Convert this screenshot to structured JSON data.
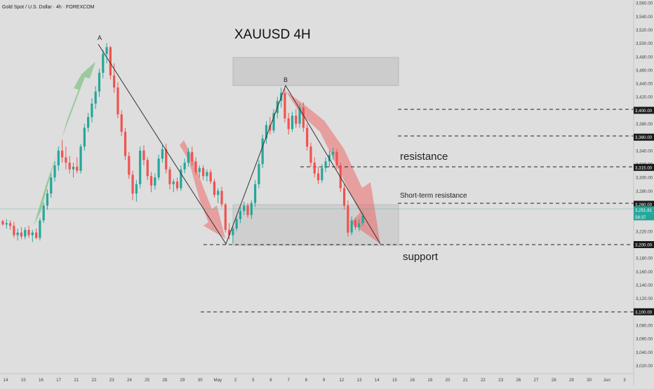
{
  "header": {
    "symbol_info": "Gold Spot / U.S. Dollar · 4h · FOREXCOM"
  },
  "chart_data": {
    "type": "candlestick",
    "title": "XAUUSD  4H",
    "y_axis": {
      "range": [
        3000,
        3560
      ],
      "tick_step": 20,
      "tick_labels": [
        "3,020.00",
        "3,040.00",
        "3,060.00",
        "3,080.00",
        "3,100.00",
        "3,120.00",
        "3,140.00",
        "3,160.00",
        "3,180.00",
        "3,200.00",
        "3,220.00",
        "3,240.00",
        "3,260.00",
        "3,280.00",
        "3,300.00",
        "3,320.00",
        "3,340.00",
        "3,360.00",
        "3,380.00",
        "3,400.00",
        "3,420.00",
        "3,440.00",
        "3,460.00",
        "3,480.00",
        "3,500.00",
        "3,520.00",
        "3,540.00",
        "3,560.00"
      ]
    },
    "x_axis": {
      "tick_labels": [
        "14",
        "15",
        "16",
        "17",
        "21",
        "22",
        "23",
        "24",
        "25",
        "28",
        "29",
        "30",
        "May",
        "2",
        "5",
        "6",
        "7",
        "8",
        "9",
        "12",
        "13",
        "14",
        "15",
        "16",
        "19",
        "20",
        "21",
        "22",
        "23",
        "26",
        "27",
        "28",
        "29",
        "30",
        "Jun",
        "3"
      ]
    },
    "price_badges": [
      {
        "label": "3,400.00",
        "value": 3400
      },
      {
        "label": "3,360.00",
        "value": 3360
      },
      {
        "label": "3,315.00",
        "value": 3315
      },
      {
        "label": "3,260.00",
        "value": 3260
      },
      {
        "label": "3,251.81",
        "value": 3251.81
      },
      {
        "label": "58:37"
      },
      {
        "label": "3,200.00",
        "value": 3200
      },
      {
        "label": "3,100.00",
        "value": 3100
      }
    ],
    "candles": [
      [
        3235,
        3237,
        3228,
        3230
      ],
      [
        3230,
        3238,
        3224,
        3232
      ],
      [
        3232,
        3236,
        3222,
        3228
      ],
      [
        3228,
        3234,
        3210,
        3214
      ],
      [
        3214,
        3224,
        3206,
        3218
      ],
      [
        3218,
        3226,
        3208,
        3212
      ],
      [
        3212,
        3226,
        3208,
        3222
      ],
      [
        3222,
        3228,
        3210,
        3214
      ],
      [
        3214,
        3222,
        3204,
        3218
      ],
      [
        3218,
        3224,
        3208,
        3210
      ],
      [
        3210,
        3240,
        3206,
        3236
      ],
      [
        3236,
        3262,
        3232,
        3258
      ],
      [
        3258,
        3282,
        3252,
        3276
      ],
      [
        3276,
        3306,
        3270,
        3300
      ],
      [
        3300,
        3324,
        3294,
        3318
      ],
      [
        3318,
        3346,
        3310,
        3340
      ],
      [
        3340,
        3356,
        3322,
        3330
      ],
      [
        3330,
        3346,
        3312,
        3322
      ],
      [
        3322,
        3332,
        3306,
        3312
      ],
      [
        3312,
        3322,
        3300,
        3316
      ],
      [
        3316,
        3330,
        3306,
        3310
      ],
      [
        3310,
        3350,
        3306,
        3346
      ],
      [
        3346,
        3380,
        3340,
        3374
      ],
      [
        3374,
        3396,
        3368,
        3390
      ],
      [
        3390,
        3418,
        3382,
        3410
      ],
      [
        3410,
        3436,
        3402,
        3428
      ],
      [
        3428,
        3462,
        3420,
        3456
      ],
      [
        3456,
        3490,
        3448,
        3484
      ],
      [
        3484,
        3500,
        3470,
        3494
      ],
      [
        3494,
        3496,
        3446,
        3452
      ],
      [
        3452,
        3470,
        3426,
        3434
      ],
      [
        3434,
        3442,
        3388,
        3394
      ],
      [
        3394,
        3400,
        3362,
        3368
      ],
      [
        3368,
        3374,
        3326,
        3332
      ],
      [
        3332,
        3338,
        3298,
        3304
      ],
      [
        3304,
        3310,
        3266,
        3276
      ],
      [
        3276,
        3296,
        3264,
        3290
      ],
      [
        3290,
        3346,
        3284,
        3340
      ],
      [
        3340,
        3348,
        3318,
        3326
      ],
      [
        3326,
        3330,
        3296,
        3302
      ],
      [
        3302,
        3308,
        3278,
        3288
      ],
      [
        3288,
        3306,
        3282,
        3300
      ],
      [
        3300,
        3334,
        3296,
        3328
      ],
      [
        3328,
        3348,
        3322,
        3342
      ],
      [
        3342,
        3350,
        3306,
        3312
      ],
      [
        3312,
        3316,
        3282,
        3290
      ],
      [
        3290,
        3298,
        3278,
        3294
      ],
      [
        3294,
        3300,
        3280,
        3284
      ],
      [
        3284,
        3318,
        3280,
        3312
      ],
      [
        3312,
        3328,
        3306,
        3322
      ],
      [
        3322,
        3344,
        3316,
        3338
      ],
      [
        3338,
        3346,
        3318,
        3324
      ],
      [
        3324,
        3330,
        3304,
        3308
      ],
      [
        3308,
        3318,
        3300,
        3314
      ],
      [
        3314,
        3318,
        3296,
        3302
      ],
      [
        3302,
        3312,
        3294,
        3308
      ],
      [
        3308,
        3312,
        3290,
        3294
      ],
      [
        3294,
        3298,
        3270,
        3274
      ],
      [
        3274,
        3284,
        3262,
        3280
      ],
      [
        3280,
        3286,
        3256,
        3260
      ],
      [
        3260,
        3262,
        3218,
        3222
      ],
      [
        3222,
        3232,
        3208,
        3214
      ],
      [
        3214,
        3228,
        3202,
        3224
      ],
      [
        3224,
        3242,
        3220,
        3238
      ],
      [
        3238,
        3256,
        3232,
        3250
      ],
      [
        3250,
        3264,
        3244,
        3258
      ],
      [
        3258,
        3262,
        3240,
        3244
      ],
      [
        3244,
        3266,
        3238,
        3262
      ],
      [
        3262,
        3296,
        3256,
        3290
      ],
      [
        3290,
        3326,
        3284,
        3320
      ],
      [
        3320,
        3364,
        3314,
        3358
      ],
      [
        3358,
        3384,
        3350,
        3378
      ],
      [
        3378,
        3390,
        3364,
        3370
      ],
      [
        3370,
        3402,
        3366,
        3396
      ],
      [
        3396,
        3420,
        3388,
        3414
      ],
      [
        3414,
        3434,
        3404,
        3426
      ],
      [
        3426,
        3432,
        3382,
        3388
      ],
      [
        3388,
        3396,
        3364,
        3372
      ],
      [
        3372,
        3398,
        3368,
        3392
      ],
      [
        3392,
        3402,
        3374,
        3380
      ],
      [
        3380,
        3410,
        3374,
        3404
      ],
      [
        3404,
        3412,
        3368,
        3374
      ],
      [
        3374,
        3380,
        3340,
        3346
      ],
      [
        3346,
        3352,
        3316,
        3322
      ],
      [
        3322,
        3330,
        3300,
        3306
      ],
      [
        3306,
        3316,
        3290,
        3296
      ],
      [
        3296,
        3320,
        3292,
        3314
      ],
      [
        3314,
        3330,
        3308,
        3324
      ],
      [
        3324,
        3340,
        3316,
        3334
      ],
      [
        3334,
        3344,
        3326,
        3338
      ],
      [
        3338,
        3342,
        3312,
        3318
      ],
      [
        3318,
        3322,
        3278,
        3284
      ],
      [
        3284,
        3290,
        3252,
        3258
      ],
      [
        3258,
        3266,
        3212,
        3218
      ],
      [
        3218,
        3242,
        3214,
        3236
      ],
      [
        3236,
        3240,
        3222,
        3226
      ],
      [
        3226,
        3238,
        3220,
        3232
      ],
      [
        3232,
        3248,
        3228,
        3243
      ]
    ]
  },
  "annotations": {
    "point_a": "A",
    "point_b": "B",
    "resistance": "resistance",
    "short_term_resistance": "Short-term resistance",
    "support": "support"
  },
  "colors": {
    "up": "#26a69a",
    "down": "#ef5350",
    "background": "#dedede",
    "green_arrow": "#4caf50",
    "red_arrow": "#ef5350"
  }
}
